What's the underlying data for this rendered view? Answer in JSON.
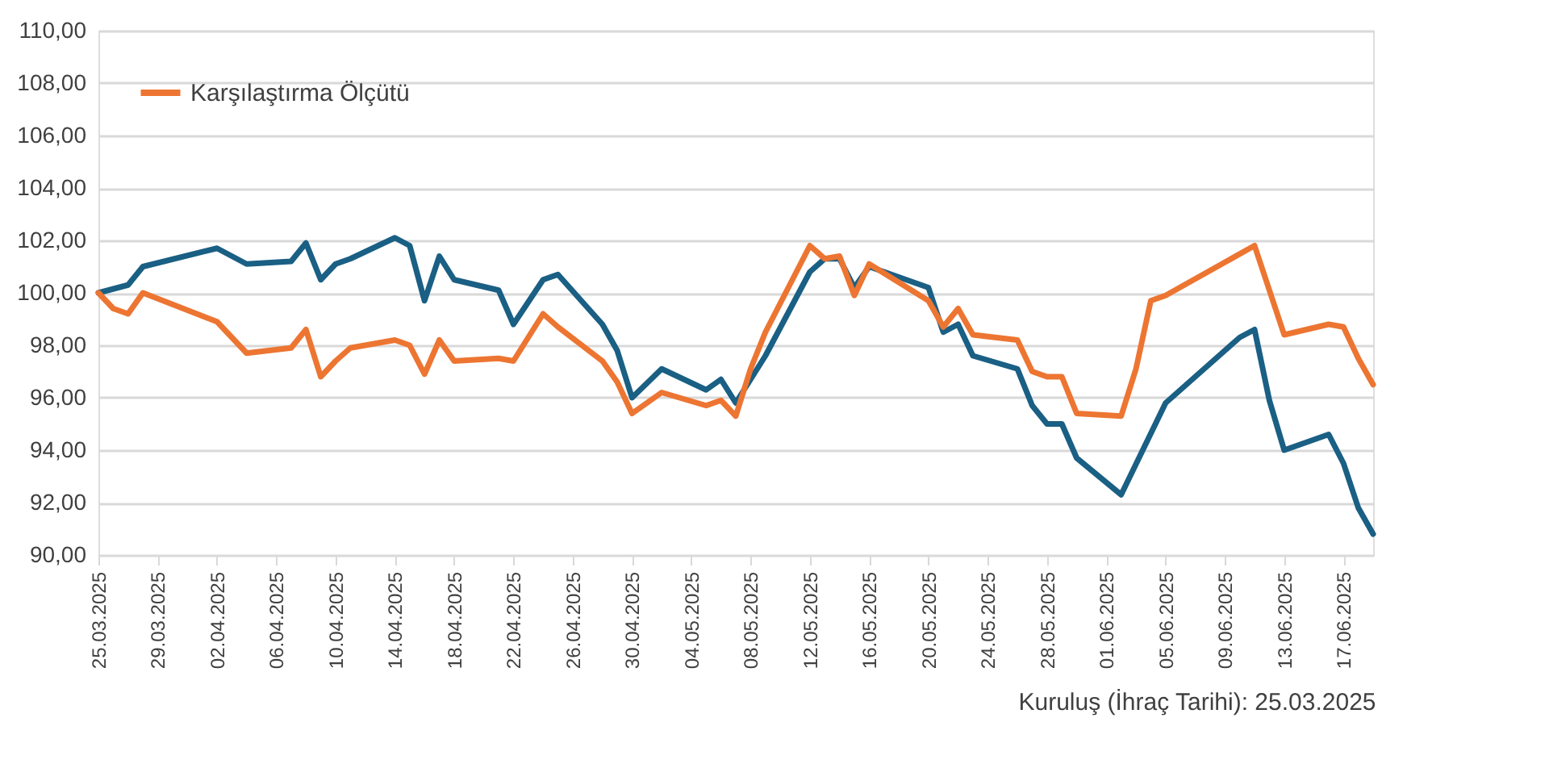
{
  "chart_data": {
    "type": "line",
    "annotations": [
      "Kuruluş (İhraç Tarihi): 25.03.2025"
    ],
    "series": [
      {
        "color": "#1a5f84",
        "x": [
          "2025-03-25",
          "2025-03-27",
          "2025-03-28",
          "2025-04-02",
          "2025-04-04",
          "2025-04-07",
          "2025-04-08",
          "2025-04-09",
          "2025-04-10",
          "2025-04-11",
          "2025-04-14",
          "2025-04-15",
          "2025-04-16",
          "2025-04-17",
          "2025-04-18",
          "2025-04-21",
          "2025-04-22",
          "2025-04-24",
          "2025-04-25",
          "2025-04-28",
          "2025-04-29",
          "2025-04-30",
          "2025-05-02",
          "2025-05-05",
          "2025-05-06",
          "2025-05-07",
          "2025-05-09",
          "2025-05-12",
          "2025-05-13",
          "2025-05-14",
          "2025-05-15",
          "2025-05-16",
          "2025-05-20",
          "2025-05-21",
          "2025-05-22",
          "2025-05-23",
          "2025-05-26",
          "2025-05-27",
          "2025-05-28",
          "2025-05-29",
          "2025-05-30",
          "2025-06-02",
          "2025-06-05",
          "2025-06-10",
          "2025-06-11",
          "2025-06-12",
          "2025-06-13",
          "2025-06-16",
          "2025-06-17",
          "2025-06-18",
          "2025-06-19"
        ],
        "values": [
          100.0,
          100.3,
          101.0,
          101.7,
          101.1,
          101.2,
          101.9,
          100.5,
          101.1,
          101.3,
          102.1,
          101.8,
          99.7,
          101.4,
          100.5,
          100.1,
          98.8,
          100.5,
          100.7,
          98.8,
          97.8,
          96.0,
          97.1,
          96.3,
          96.7,
          95.8,
          97.6,
          100.8,
          101.3,
          101.3,
          100.2,
          101.0,
          100.2,
          98.5,
          98.8,
          97.6,
          97.1,
          95.7,
          95.0,
          95.0,
          93.7,
          92.3,
          95.8,
          98.3,
          98.6,
          95.9,
          94.0,
          94.6,
          93.5,
          91.8,
          90.8
        ]
      },
      {
        "name": "Karşılaştırma Ölçütü",
        "color": "#ed7532",
        "x": [
          "2025-03-25",
          "2025-03-26",
          "2025-03-27",
          "2025-03-28",
          "2025-04-02",
          "2025-04-04",
          "2025-04-07",
          "2025-04-08",
          "2025-04-09",
          "2025-04-10",
          "2025-04-11",
          "2025-04-14",
          "2025-04-15",
          "2025-04-16",
          "2025-04-17",
          "2025-04-18",
          "2025-04-21",
          "2025-04-22",
          "2025-04-24",
          "2025-04-25",
          "2025-04-28",
          "2025-04-29",
          "2025-04-30",
          "2025-05-02",
          "2025-05-05",
          "2025-05-06",
          "2025-05-07",
          "2025-05-08",
          "2025-05-09",
          "2025-05-12",
          "2025-05-13",
          "2025-05-14",
          "2025-05-15",
          "2025-05-16",
          "2025-05-20",
          "2025-05-21",
          "2025-05-22",
          "2025-05-23",
          "2025-05-26",
          "2025-05-27",
          "2025-05-28",
          "2025-05-29",
          "2025-05-30",
          "2025-06-02",
          "2025-06-03",
          "2025-06-04",
          "2025-06-05",
          "2025-06-11",
          "2025-06-13",
          "2025-06-16",
          "2025-06-17",
          "2025-06-18",
          "2025-06-19"
        ],
        "values": [
          100.0,
          99.4,
          99.2,
          100.0,
          98.9,
          97.7,
          97.9,
          98.6,
          96.8,
          97.4,
          97.9,
          98.2,
          98.0,
          96.9,
          98.2,
          97.4,
          97.5,
          97.4,
          99.2,
          98.7,
          97.4,
          96.6,
          95.4,
          96.2,
          95.7,
          95.9,
          95.3,
          97.1,
          98.5,
          101.8,
          101.3,
          101.4,
          99.9,
          101.1,
          99.7,
          98.7,
          99.4,
          98.4,
          98.2,
          97.0,
          96.8,
          96.8,
          95.4,
          95.3,
          97.1,
          99.7,
          99.9,
          101.8,
          98.4,
          98.8,
          98.7,
          97.5,
          96.5
        ]
      }
    ],
    "xlim": [
      "2025-03-25",
      "2025-06-19"
    ],
    "xticks": [
      {
        "value": "2025-03-25",
        "label": "25.03.2025"
      },
      {
        "value": "2025-03-29",
        "label": "29.03.2025"
      },
      {
        "value": "2025-04-02",
        "label": "02.04.2025"
      },
      {
        "value": "2025-04-06",
        "label": "06.04.2025"
      },
      {
        "value": "2025-04-10",
        "label": "10.04.2025"
      },
      {
        "value": "2025-04-14",
        "label": "14.04.2025"
      },
      {
        "value": "2025-04-18",
        "label": "18.04.2025"
      },
      {
        "value": "2025-04-22",
        "label": "22.04.2025"
      },
      {
        "value": "2025-04-26",
        "label": "26.04.2025"
      },
      {
        "value": "2025-04-30",
        "label": "30.04.2025"
      },
      {
        "value": "2025-05-04",
        "label": "04.05.2025"
      },
      {
        "value": "2025-05-08",
        "label": "08.05.2025"
      },
      {
        "value": "2025-05-12",
        "label": "12.05.2025"
      },
      {
        "value": "2025-05-16",
        "label": "16.05.2025"
      },
      {
        "value": "2025-05-20",
        "label": "20.05.2025"
      },
      {
        "value": "2025-05-24",
        "label": "24.05.2025"
      },
      {
        "value": "2025-05-28",
        "label": "28.05.2025"
      },
      {
        "value": "2025-06-01",
        "label": "01.06.2025"
      },
      {
        "value": "2025-06-05",
        "label": "05.06.2025"
      },
      {
        "value": "2025-06-09",
        "label": "09.06.2025"
      },
      {
        "value": "2025-06-13",
        "label": "13.06.2025"
      },
      {
        "value": "2025-06-17",
        "label": "17.06.2025"
      }
    ],
    "ylim": [
      90,
      110
    ],
    "yticks": [
      {
        "value": 90,
        "label": "90,00"
      },
      {
        "value": 92,
        "label": "92,00"
      },
      {
        "value": 94,
        "label": "94,00"
      },
      {
        "value": 96,
        "label": "96,00"
      },
      {
        "value": 98,
        "label": "98,00"
      },
      {
        "value": 100,
        "label": "100,00"
      },
      {
        "value": 102,
        "label": "102,00"
      },
      {
        "value": 104,
        "label": "104,00"
      },
      {
        "value": 106,
        "label": "106,00"
      },
      {
        "value": 108,
        "label": "108,00"
      },
      {
        "value": 110,
        "label": "110,00"
      }
    ],
    "grid": "y",
    "legend": "top left"
  }
}
